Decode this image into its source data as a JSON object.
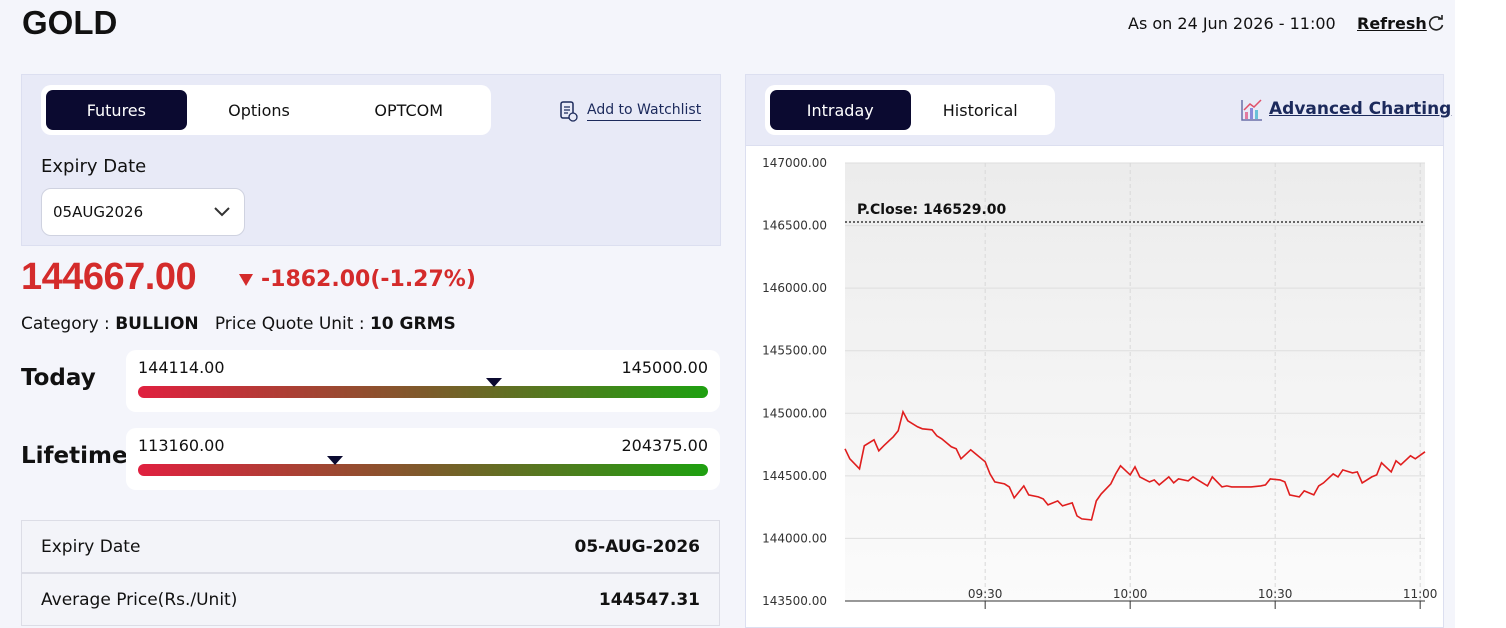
{
  "header": {
    "title": "GOLD",
    "as_on": "As on 24 Jun 2026 - 11:00",
    "refresh": "Refresh"
  },
  "contract": {
    "tabs": [
      "Futures",
      "Options",
      "OPTCOM"
    ],
    "watchlist": "Add to Watchlist",
    "expiry_label": "Expiry Date",
    "expiry_value": "05AUG2026"
  },
  "quote": {
    "price": "144667.00",
    "change": "-1862.00(-1.27%)",
    "category_label": "Category :",
    "category": "BULLION",
    "unit_label": "Price Quote Unit :",
    "unit": "10 GRMS"
  },
  "ranges": [
    {
      "label": "Today",
      "low": "144114.00",
      "high": "145000.00"
    },
    {
      "label": "Lifetime",
      "low": "113160.00",
      "high": "204375.00"
    }
  ],
  "details": {
    "rows": [
      [
        "Expiry Date",
        "05-AUG-2026"
      ],
      [
        "Average Price(Rs./Unit)",
        "144547.31"
      ]
    ]
  },
  "chart_panel": {
    "tabs": [
      "Intraday",
      "Historical"
    ],
    "advanced": "Advanced Charting"
  },
  "chart_data": {
    "type": "line",
    "color": "#e01e1e",
    "x": [
      1,
      2,
      4,
      5,
      7,
      8,
      9,
      11,
      12,
      13,
      14,
      16,
      17,
      19,
      20,
      21,
      23,
      24,
      25,
      27,
      28,
      30,
      31,
      32,
      34,
      35,
      36,
      38,
      39,
      41,
      42,
      43,
      45,
      46,
      48,
      49,
      50,
      52,
      53,
      54,
      56,
      57,
      58,
      60,
      61,
      62,
      64,
      65,
      66,
      68,
      69,
      70,
      72,
      73,
      74,
      76,
      77,
      79,
      80,
      81,
      83,
      84,
      85,
      87,
      88,
      89,
      91,
      92,
      93,
      95,
      96,
      98,
      99,
      100,
      102,
      103,
      104,
      106,
      107,
      108,
      110,
      111,
      112,
      114,
      115,
      116,
      118,
      119,
      121
    ],
    "values": [
      144716,
      144636,
      144556,
      144740,
      144788,
      144700,
      144740,
      144812,
      144860,
      145012,
      144940,
      144892,
      144876,
      144868,
      144820,
      144796,
      144732,
      144716,
      144636,
      144708,
      144676,
      144612,
      144516,
      144452,
      144436,
      144412,
      144324,
      144420,
      144348,
      144332,
      144316,
      144268,
      144300,
      144260,
      144284,
      144180,
      144156,
      144148,
      144300,
      144356,
      144436,
      144516,
      144580,
      144508,
      144572,
      144492,
      144452,
      144468,
      144428,
      144492,
      144444,
      144476,
      144460,
      144492,
      144468,
      144420,
      144492,
      144412,
      144420,
      144412,
      144412,
      144412,
      144412,
      144420,
      144428,
      144476,
      144468,
      144452,
      144348,
      144332,
      144380,
      144348,
      144420,
      144444,
      144516,
      144492,
      144548,
      144524,
      144532,
      144444,
      144492,
      144508,
      144604,
      144532,
      144620,
      144588,
      144660,
      144636,
      144692
    ],
    "xlim": [
      1,
      121
    ],
    "xticks": [
      {
        "value": 30,
        "label": "09:30"
      },
      {
        "value": 60,
        "label": "10:00"
      },
      {
        "value": 90,
        "label": "10:30"
      },
      {
        "value": 120,
        "label": "11:00"
      }
    ],
    "ylim": [
      143500,
      147000
    ],
    "yticks": [
      {
        "value": 143500,
        "label": "143500.00"
      },
      {
        "value": 144000,
        "label": "144000.00"
      },
      {
        "value": 144500,
        "label": "144500.00"
      },
      {
        "value": 145000,
        "label": "145000.00"
      },
      {
        "value": 145500,
        "label": "145500.00"
      },
      {
        "value": 146000,
        "label": "146000.00"
      },
      {
        "value": 146500,
        "label": "146500.00"
      },
      {
        "value": 147000,
        "label": "147000.00"
      }
    ],
    "grid": true,
    "reference_line": {
      "value": 146529,
      "label": "P.Close: 146529.00"
    }
  }
}
